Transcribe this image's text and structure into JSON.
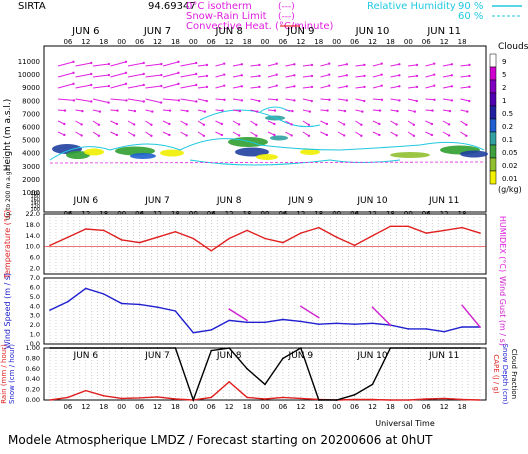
{
  "header": {
    "station": "SIRTA",
    "coords": "94.69347",
    "legend_isotherm": "0°C isotherm",
    "legend_snow_rain": "Snow-Rain Limit",
    "legend_convective": "Convective Heat. (°C/minute)",
    "legend_rh": "Relative Humidity",
    "rh_90": "90 %",
    "rh_60": "60 %",
    "dash_box": "(---)",
    "colors": {
      "magenta": "#e020e0",
      "red": "#e00000",
      "cyan": "#20c8e0",
      "blue": "#2020d0"
    }
  },
  "days": [
    "JUN 6",
    "JUN 7",
    "JUN 8",
    "JUN 9",
    "JUN 10",
    "JUN 11"
  ],
  "hours": [
    "06",
    "12",
    "18",
    "00",
    "06",
    "12",
    "18",
    "00",
    "06",
    "12",
    "18",
    "00",
    "06",
    "12",
    "18",
    "00",
    "06",
    "12",
    "18",
    "00",
    "06",
    "12",
    "18"
  ],
  "panel1": {
    "ylabel": "Height (m a.s.l.)",
    "ylabel2": "Up to 200 m a.g.l.",
    "yticks": [
      "11000",
      "10000",
      "9000",
      "8000",
      "7000",
      "6000",
      "5000",
      "4000",
      "3000",
      "2000",
      "1000",
      "200",
      "180",
      "160",
      "140",
      "120",
      "100"
    ],
    "clouds_title": "Clouds",
    "cloud_scale": [
      "9",
      "5",
      "2",
      "1",
      "0.5",
      "0.2",
      "0.1",
      "0.05",
      "0.02",
      "0.01"
    ],
    "cloud_unit": "(g/kg)"
  },
  "panel2": {
    "ylabel": "Temperature (°C)",
    "ylabel_right": "HUMIDEX (°C)",
    "yticks": [
      "22.0",
      "18.0",
      "14.0",
      "10.0",
      "6.0",
      "2.0"
    ]
  },
  "panel3": {
    "ylabel": "Wind Speed (m / s)",
    "ylabel_right": "Wind Gust (m / s)",
    "yticks": [
      "7.0",
      "6.0",
      "5.0",
      "4.0",
      "3.0",
      "2.0",
      "1.0",
      "0.0"
    ]
  },
  "panel4": {
    "ylabel": "Rain (mm / hour)",
    "ylabel2": "Snow (cm / hour)",
    "ylabel_r1": "CAPE (J / g)",
    "ylabel_r2": "Snow Depth (cm)",
    "ylabel_r3": "Cloud Fraction",
    "yticks": [
      "1.00",
      "0.80",
      "0.60",
      "0.40",
      "0.20",
      "0.00"
    ],
    "xlabel": "Universal Time"
  },
  "footer": "Modele Atmospherique LMDZ / Forecast starting on 20200606 at 0hUT",
  "chart_data": [
    {
      "type": "line",
      "title": "",
      "xlabel": "Universal Time",
      "ylabel": "Temperature (°C)",
      "ylim": [
        0,
        22
      ],
      "x_hours": [
        0,
        6,
        12,
        18,
        24,
        30,
        36,
        42,
        48,
        54,
        60,
        66,
        72,
        78,
        84,
        90,
        96,
        102,
        108,
        114,
        120,
        126,
        132,
        138,
        144
      ],
      "series": [
        {
          "name": "Temperature",
          "color": "#e02020",
          "values": [
            10.5,
            13.5,
            16.5,
            16.0,
            12.5,
            11.5,
            13.5,
            15.5,
            13.0,
            8.5,
            13.0,
            16.0,
            13.0,
            11.5,
            15.0,
            17.0,
            13.5,
            10.5,
            14.0,
            17.5,
            17.5,
            15.0,
            16.0,
            17.0,
            15.0
          ]
        }
      ]
    },
    {
      "type": "line",
      "ylabel": "Wind Speed (m / s)",
      "ylim": [
        0,
        7
      ],
      "x_hours": [
        0,
        6,
        12,
        18,
        24,
        30,
        36,
        42,
        48,
        54,
        60,
        66,
        72,
        78,
        84,
        90,
        96,
        102,
        108,
        114,
        120,
        126,
        132,
        138,
        144
      ],
      "series": [
        {
          "name": "Wind Speed",
          "color": "#2020d0",
          "values": [
            3.6,
            4.5,
            5.9,
            5.3,
            4.3,
            4.2,
            3.9,
            3.5,
            1.2,
            1.5,
            2.5,
            2.3,
            2.3,
            2.6,
            2.4,
            2.1,
            2.2,
            2.1,
            2.2,
            2.0,
            1.6,
            1.6,
            1.3,
            1.8,
            1.8
          ]
        },
        {
          "name": "Wind Gust",
          "color": "#d020d0",
          "values": [
            null,
            null,
            null,
            null,
            null,
            null,
            null,
            null,
            null,
            null,
            3.7,
            2.5,
            null,
            null,
            4.0,
            2.8,
            null,
            null,
            3.9,
            2.0,
            null,
            null,
            null,
            4.1,
            1.8
          ]
        }
      ]
    },
    {
      "type": "line",
      "ylabel": "Rain (mm / hour)",
      "ylim": [
        0,
        1
      ],
      "x_hours": [
        0,
        6,
        12,
        18,
        24,
        30,
        36,
        42,
        48,
        54,
        60,
        66,
        72,
        78,
        84,
        90,
        96,
        102,
        108,
        114,
        120,
        126,
        132,
        138,
        144
      ],
      "series": [
        {
          "name": "Rain",
          "color": "#e02020",
          "values": [
            0,
            0.05,
            0.18,
            0.08,
            0.03,
            0.04,
            0.06,
            0.02,
            0,
            0.05,
            0.35,
            0.05,
            0.02,
            0.05,
            0.03,
            0.01,
            0,
            0.01,
            0.01,
            0,
            0,
            0.02,
            0.03,
            0.01,
            0
          ]
        },
        {
          "name": "Cloud Fraction",
          "color": "#000000",
          "values": [
            1,
            1,
            1,
            1,
            1,
            1,
            1,
            1,
            0,
            0.95,
            1,
            0.6,
            0.3,
            0.8,
            1,
            0,
            0,
            0.1,
            0.3,
            1,
            1,
            1,
            1,
            1,
            1
          ]
        }
      ]
    }
  ]
}
